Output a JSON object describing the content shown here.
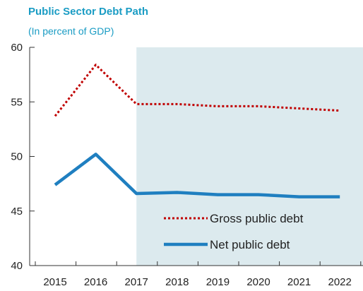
{
  "chart_data": {
    "type": "line",
    "title": "Public Sector Debt Path",
    "subtitle": "(In percent of GDP)",
    "x": [
      "2015",
      "2016",
      "2017",
      "2018",
      "2019",
      "2020",
      "2021",
      "2022"
    ],
    "series": [
      {
        "name": "Gross public debt",
        "values": [
          53.7,
          58.4,
          54.8,
          54.8,
          54.6,
          54.6,
          54.4,
          54.2
        ],
        "color": "#c00000",
        "style": "dotted"
      },
      {
        "name": "Net public debt",
        "values": [
          47.4,
          50.2,
          46.6,
          46.7,
          46.5,
          46.5,
          46.3,
          46.3
        ],
        "color": "#1f7fc0",
        "style": "solid"
      }
    ],
    "ylim": [
      40,
      60
    ],
    "yticks": [
      40,
      45,
      50,
      55,
      60
    ],
    "projection_shade_from": "2017",
    "shade_color": "#dceaee",
    "legend_position": "bottom-right",
    "grid": false
  }
}
